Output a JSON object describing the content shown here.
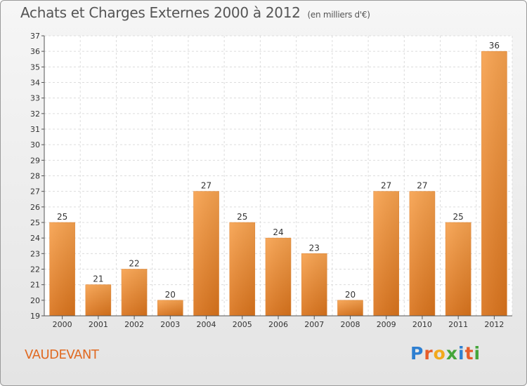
{
  "header": {
    "title": "Achats et Charges Externes 2000 à 2012",
    "subtitle": "(en milliers d'€)"
  },
  "footer": {
    "location": "VAUDEVANT",
    "brand": [
      "P",
      "r",
      "o",
      "x",
      "i",
      "t",
      "i"
    ],
    "brand_colors": [
      "#2e7fd1",
      "#e65c2a",
      "#f2a91c",
      "#45a63b",
      "#2e7fd1",
      "#e65c2a",
      "#45a63b"
    ]
  },
  "chart_data": {
    "type": "bar",
    "title": "Achats et Charges Externes 2000 à 2012",
    "subtitle": "(en milliers d'€)",
    "xlabel": "",
    "ylabel": "",
    "categories": [
      "2000",
      "2001",
      "2002",
      "2003",
      "2004",
      "2005",
      "2006",
      "2007",
      "2008",
      "2009",
      "2010",
      "2011",
      "2012"
    ],
    "values": [
      25,
      21,
      22,
      20,
      27,
      25,
      24,
      23,
      20,
      27,
      27,
      25,
      36
    ],
    "ylim": [
      19,
      37
    ],
    "yticks": [
      19,
      20,
      21,
      22,
      23,
      24,
      25,
      26,
      27,
      28,
      29,
      30,
      31,
      32,
      33,
      34,
      35,
      36,
      37
    ],
    "grid": true,
    "bar_color_light": "#f7a24f",
    "bar_color_dark": "#d9731c"
  }
}
